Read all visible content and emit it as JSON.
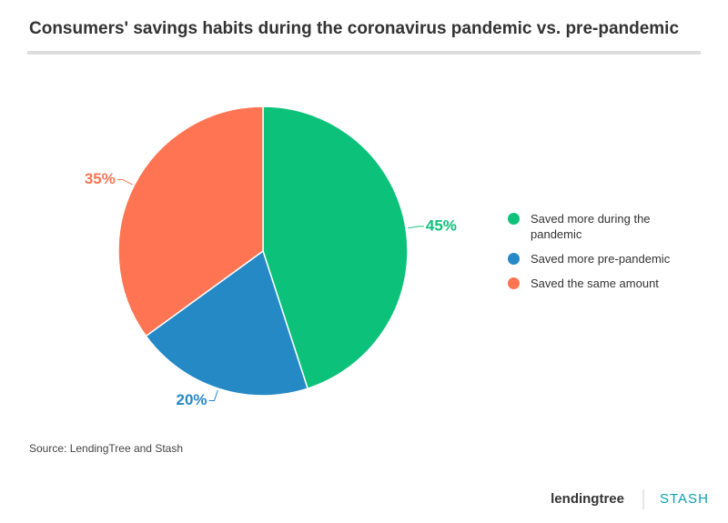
{
  "chart_data": {
    "type": "pie",
    "title": "Consumers' savings habits during the coronavirus pandemic vs. pre-pandemic",
    "categories": [
      "Saved more during the pandemic",
      "Saved more pre-pandemic",
      "Saved the same amount"
    ],
    "values": [
      45,
      20,
      35
    ],
    "value_labels": [
      "45%",
      "20%",
      "35%"
    ],
    "colors": [
      "#0cc27a",
      "#2589c6",
      "#ff7452"
    ],
    "source": "Source: LendingTree and Stash",
    "logos": [
      "lendingtree",
      "STASH"
    ]
  }
}
